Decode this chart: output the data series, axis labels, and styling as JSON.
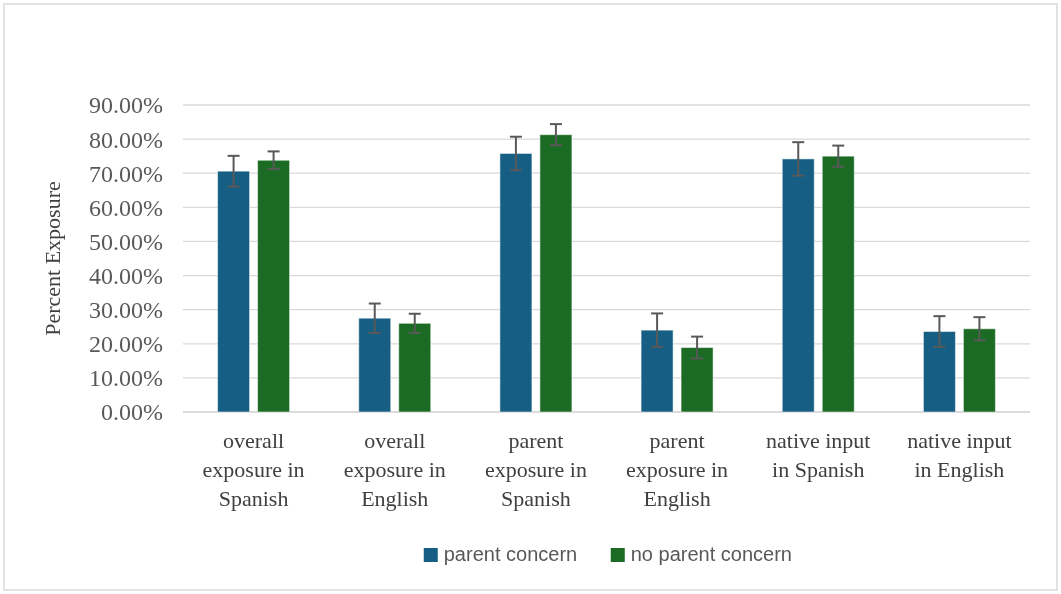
{
  "chart_data": {
    "type": "bar",
    "ylabel": "Percent Exposure",
    "categories": [
      "overall exposure in Spanish",
      "overall exposure in English",
      "parent exposure in Spanish",
      "parent exposure in English",
      "native input in Spanish",
      "native input in English"
    ],
    "series": [
      {
        "name": "parent concern",
        "color": "#165e83",
        "values": [
          70.6,
          27.5,
          75.8,
          24.0,
          74.2,
          23.6
        ],
        "errors": [
          4.5,
          4.3,
          4.9,
          4.9,
          4.9,
          4.5
        ]
      },
      {
        "name": "no parent concern",
        "color": "#1c6b25",
        "values": [
          73.8,
          26.0,
          81.3,
          18.9,
          75.0,
          24.4
        ],
        "errors": [
          2.6,
          2.8,
          3.1,
          3.2,
          3.1,
          3.4
        ]
      }
    ],
    "ylim": [
      0,
      90
    ],
    "yticks": [
      {
        "value": 0,
        "label": "0.00%"
      },
      {
        "value": 10,
        "label": "10.00%"
      },
      {
        "value": 20,
        "label": "20.00%"
      },
      {
        "value": 30,
        "label": "30.00%"
      },
      {
        "value": 40,
        "label": "40.00%"
      },
      {
        "value": 50,
        "label": "50.00%"
      },
      {
        "value": 60,
        "label": "60.00%"
      },
      {
        "value": 70,
        "label": "70.00%"
      },
      {
        "value": 80,
        "label": "80.00%"
      },
      {
        "value": 90,
        "label": "90.00%"
      }
    ],
    "grid": "y",
    "legend": "bottom"
  }
}
